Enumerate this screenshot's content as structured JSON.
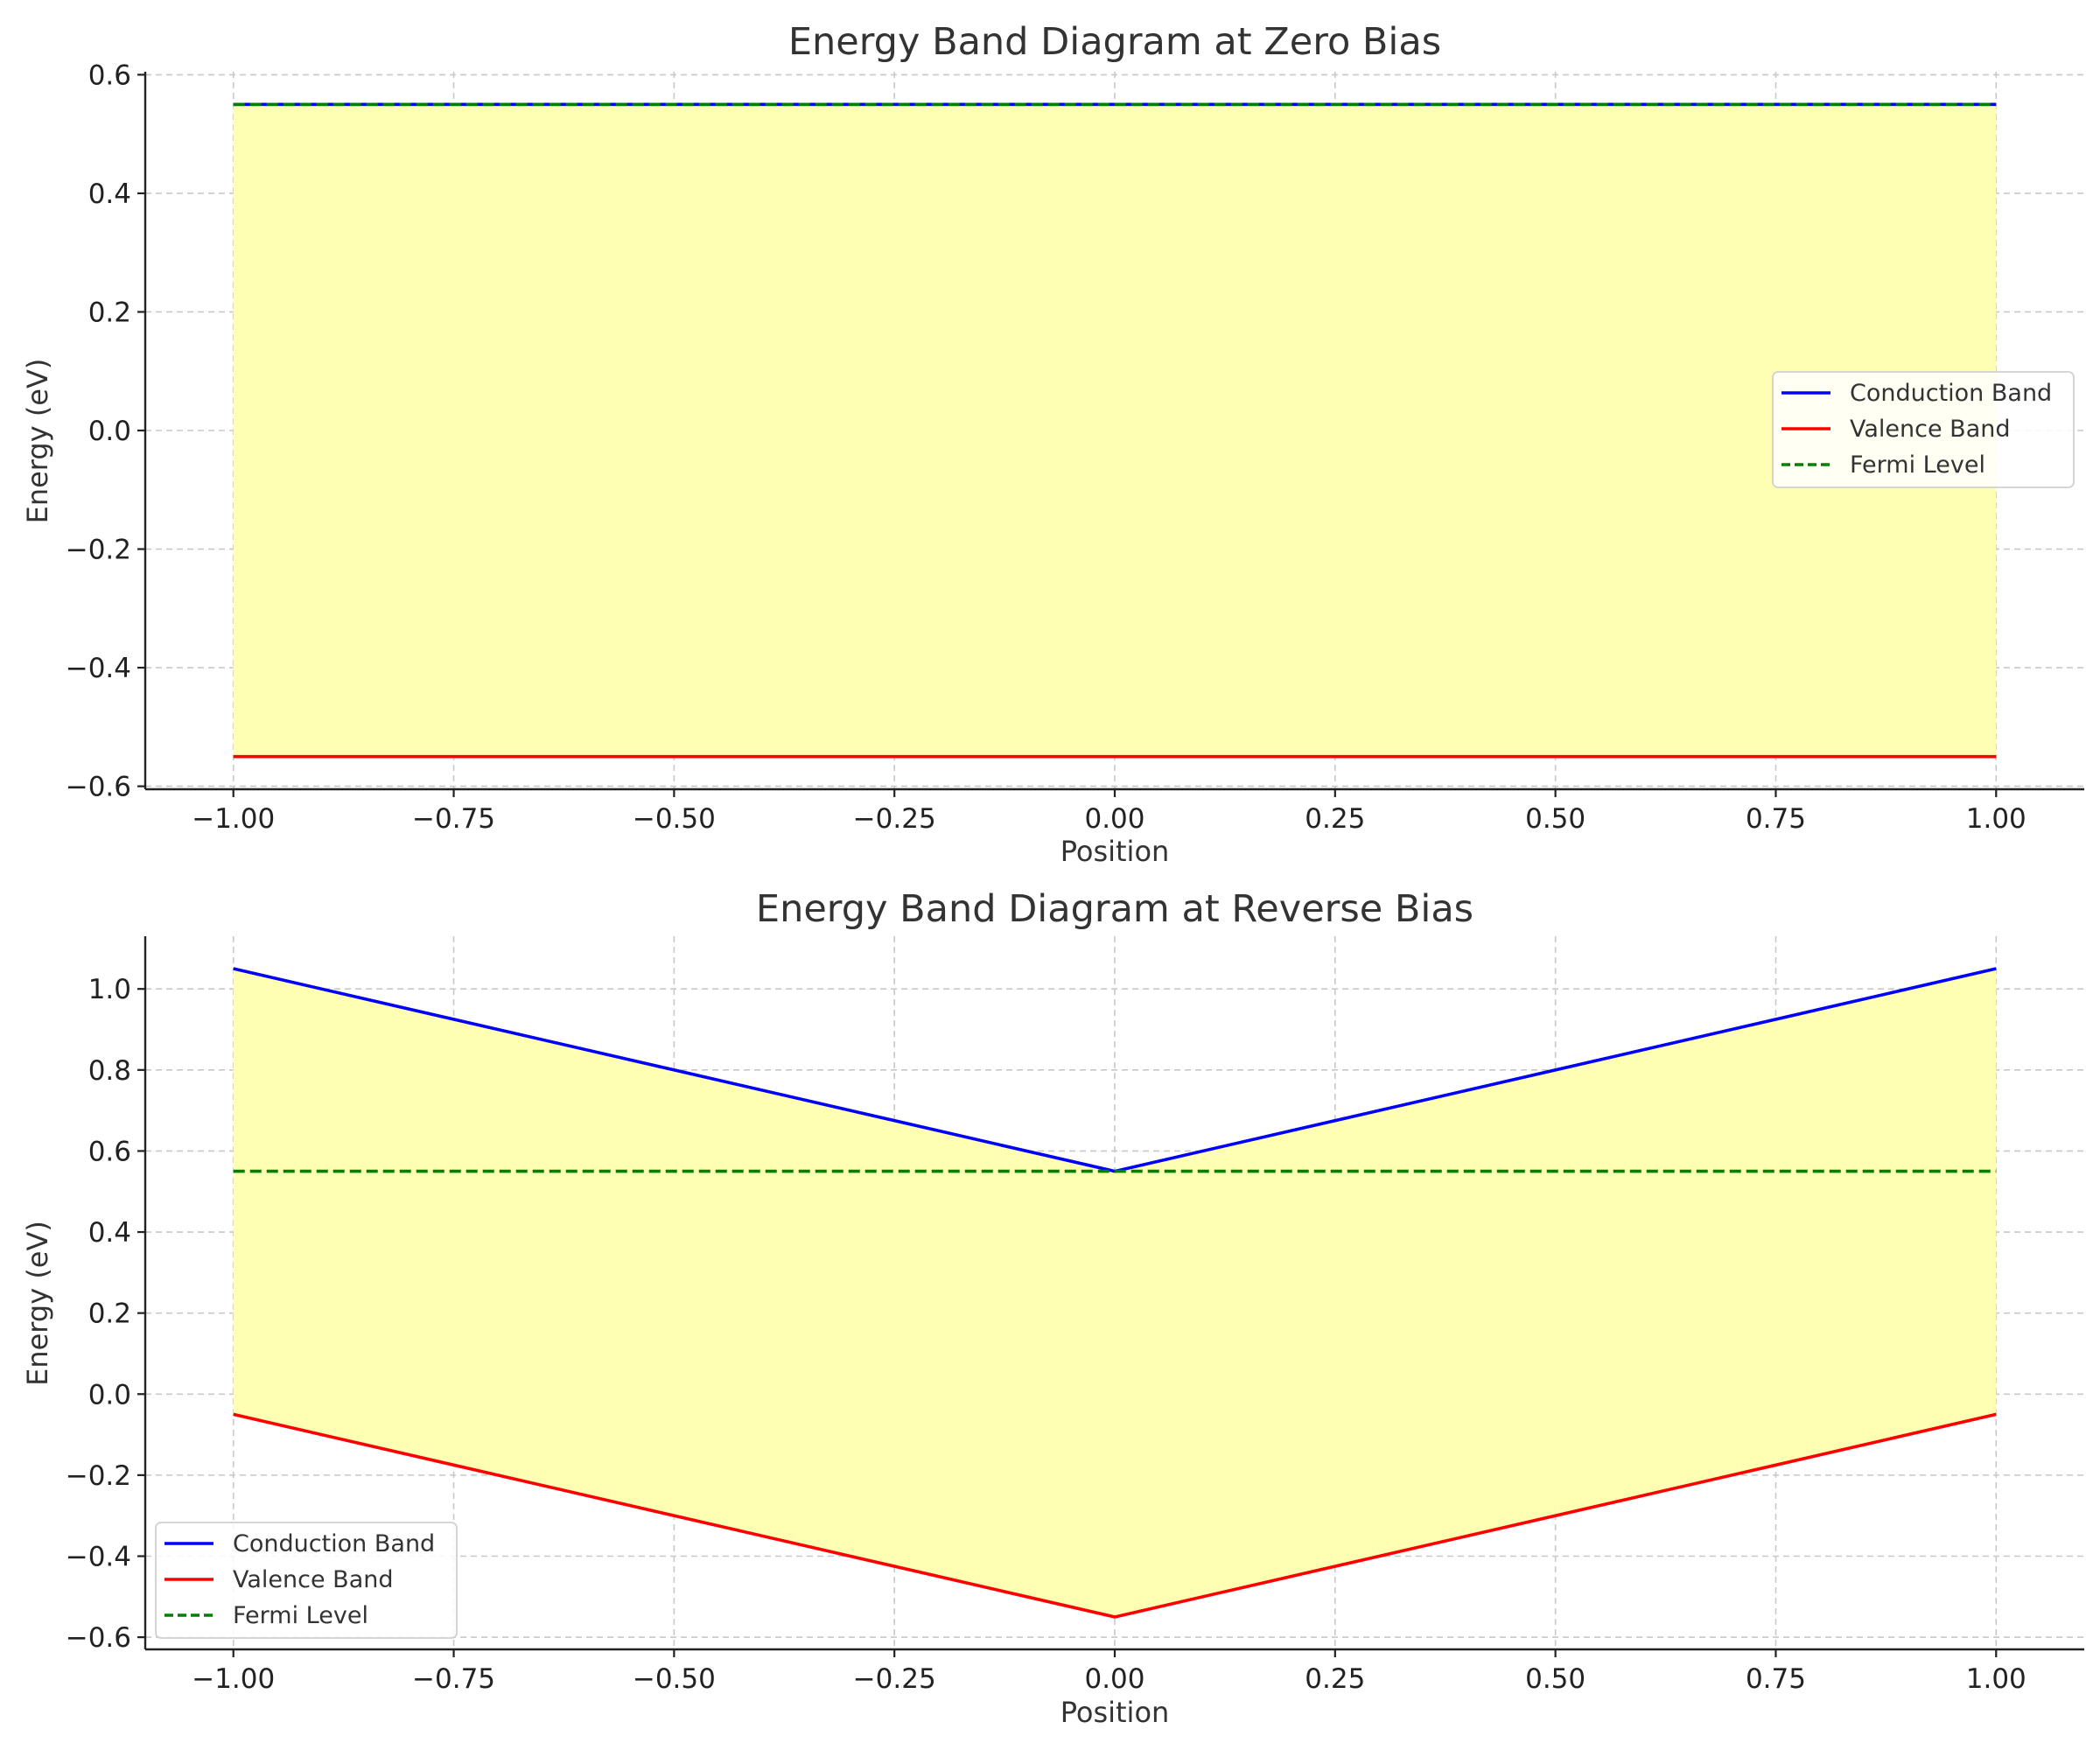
{
  "chart_data": [
    {
      "type": "line",
      "title": "Energy Band Diagram at Zero Bias",
      "xlabel": "Position",
      "ylabel": "Energy (eV)",
      "xlim": [
        -1.1,
        1.1
      ],
      "ylim": [
        -0.605,
        0.605
      ],
      "xticks": [
        -1.0,
        -0.75,
        -0.5,
        -0.25,
        0.0,
        0.25,
        0.5,
        0.75,
        1.0
      ],
      "xtick_labels": [
        "−1.00",
        "−0.75",
        "−0.50",
        "−0.25",
        "0.00",
        "0.25",
        "0.50",
        "0.75",
        "1.00"
      ],
      "yticks": [
        -0.6,
        -0.4,
        -0.2,
        0.0,
        0.2,
        0.4,
        0.6
      ],
      "ytick_labels": [
        "−0.6",
        "−0.4",
        "−0.2",
        "0.0",
        "0.2",
        "0.4",
        "0.6"
      ],
      "grid": true,
      "legend_position": "center-right",
      "fill_between": {
        "x": [
          -1.0,
          1.0
        ],
        "upper": [
          0.55,
          0.55
        ],
        "lower": [
          -0.55,
          -0.55
        ],
        "color": "#ffffb3"
      },
      "series": [
        {
          "name": "Conduction Band",
          "color": "#0000ff",
          "style": "solid",
          "x": [
            -1.0,
            1.0
          ],
          "values": [
            0.55,
            0.55
          ]
        },
        {
          "name": "Valence Band",
          "color": "#ff0000",
          "style": "solid",
          "x": [
            -1.0,
            1.0
          ],
          "values": [
            -0.55,
            -0.55
          ]
        },
        {
          "name": "Fermi Level",
          "color": "#008000",
          "style": "dashed",
          "x": [
            -1.0,
            1.0
          ],
          "values": [
            0.55,
            0.55
          ]
        }
      ]
    },
    {
      "type": "line",
      "title": "Energy Band Diagram at Reverse Bias",
      "xlabel": "Position",
      "ylabel": "Energy (eV)",
      "xlim": [
        -1.1,
        1.1
      ],
      "ylim": [
        -0.63,
        1.13
      ],
      "xticks": [
        -1.0,
        -0.75,
        -0.5,
        -0.25,
        0.0,
        0.25,
        0.5,
        0.75,
        1.0
      ],
      "xtick_labels": [
        "−1.00",
        "−0.75",
        "−0.50",
        "−0.25",
        "0.00",
        "0.25",
        "0.50",
        "0.75",
        "1.00"
      ],
      "yticks": [
        -0.6,
        -0.4,
        -0.2,
        0.0,
        0.2,
        0.4,
        0.6,
        0.8,
        1.0
      ],
      "ytick_labels": [
        "−0.6",
        "−0.4",
        "−0.2",
        "0.0",
        "0.2",
        "0.4",
        "0.6",
        "0.8",
        "1.0"
      ],
      "grid": true,
      "legend_position": "lower-left",
      "fill_between": {
        "x": [
          -1.0,
          0.0,
          1.0
        ],
        "upper": [
          1.05,
          0.55,
          1.05
        ],
        "lower": [
          -0.05,
          -0.55,
          -0.05
        ],
        "color": "#ffffb3"
      },
      "series": [
        {
          "name": "Conduction Band",
          "color": "#0000ff",
          "style": "solid",
          "x": [
            -1.0,
            0.0,
            1.0
          ],
          "values": [
            1.05,
            0.55,
            1.05
          ]
        },
        {
          "name": "Valence Band",
          "color": "#ff0000",
          "style": "solid",
          "x": [
            -1.0,
            0.0,
            1.0
          ],
          "values": [
            -0.05,
            -0.55,
            -0.05
          ]
        },
        {
          "name": "Fermi Level",
          "color": "#008000",
          "style": "dashed",
          "x": [
            -1.0,
            1.0
          ],
          "values": [
            0.55,
            0.55
          ]
        }
      ]
    }
  ]
}
